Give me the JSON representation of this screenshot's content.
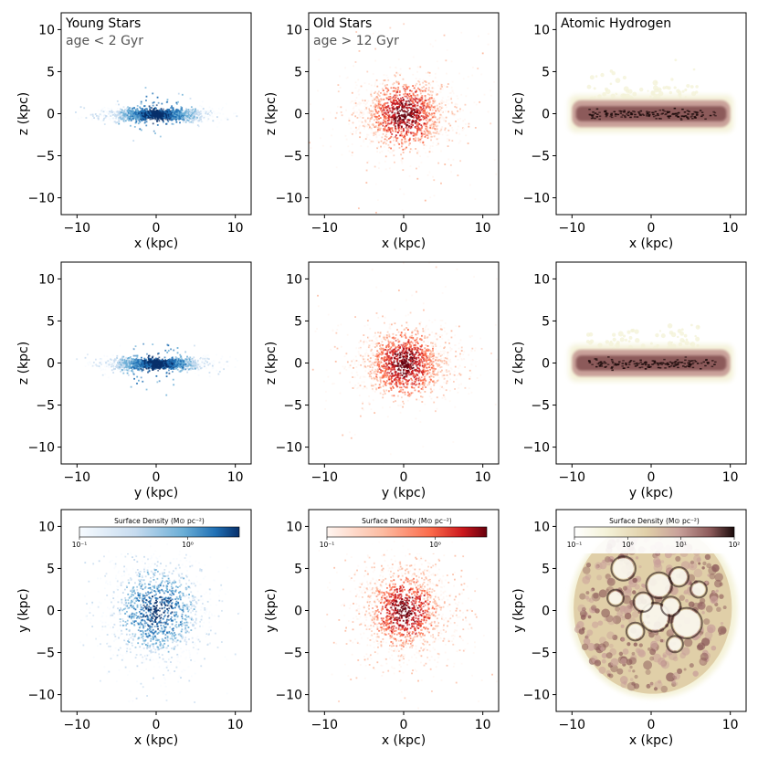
{
  "figure": {
    "panels": [
      {
        "row": 0,
        "col": 0,
        "component": "young",
        "projection": "xz",
        "title": "Young Stars",
        "subtitle": "age < 2 Gyr"
      },
      {
        "row": 0,
        "col": 1,
        "component": "old",
        "projection": "xz",
        "title": "Old Stars",
        "subtitle": "age > 12 Gyr"
      },
      {
        "row": 0,
        "col": 2,
        "component": "hi",
        "projection": "xz",
        "title": "Atomic Hydrogen",
        "subtitle": ""
      },
      {
        "row": 1,
        "col": 0,
        "component": "young",
        "projection": "yz",
        "title": "",
        "subtitle": ""
      },
      {
        "row": 1,
        "col": 1,
        "component": "old",
        "projection": "yz",
        "title": "",
        "subtitle": ""
      },
      {
        "row": 1,
        "col": 2,
        "component": "hi",
        "projection": "yz",
        "title": "",
        "subtitle": ""
      },
      {
        "row": 2,
        "col": 0,
        "component": "young",
        "projection": "xy",
        "title": "",
        "subtitle": ""
      },
      {
        "row": 2,
        "col": 1,
        "component": "old",
        "projection": "xy",
        "title": "",
        "subtitle": ""
      },
      {
        "row": 2,
        "col": 2,
        "component": "hi",
        "projection": "xy",
        "title": "",
        "subtitle": ""
      }
    ],
    "colorbars": [
      {
        "col": 0,
        "label": "Surface Density (M⊙ pc⁻²)",
        "ticks": [
          "10⁻¹",
          "10⁰"
        ],
        "cmap": "Blues"
      },
      {
        "col": 1,
        "label": "Surface Density (M⊙ pc⁻²)",
        "ticks": [
          "10⁻¹",
          "10⁰"
        ],
        "cmap": "Reds"
      },
      {
        "col": 2,
        "label": "Surface Density (M⊙ pc⁻²)",
        "ticks": [
          "10⁻¹",
          "10⁰",
          "10¹",
          "10²"
        ],
        "cmap": "pink_r"
      }
    ],
    "colors": {
      "young": [
        "#f7fbff",
        "#c6dbef",
        "#6baed6",
        "#2171b5",
        "#08306b"
      ],
      "old": [
        "#fff5f0",
        "#fcbba1",
        "#fb6a4a",
        "#cb181d",
        "#67000d"
      ],
      "hi": [
        "#f4f2d8",
        "#e0cfa8",
        "#c9a19a",
        "#8c5a5a",
        "#1a0a0a"
      ],
      "subtitle": "#555555"
    }
  },
  "chart_data": [
    {
      "type": "heatmap",
      "title": "Young Stars",
      "annotation": "age < 2 Gyr",
      "xlabel": "x (kpc)",
      "ylabel": "z (kpc)",
      "xlim": [
        -12,
        12
      ],
      "ylim": [
        -12,
        12
      ],
      "xticks": [
        -10,
        0,
        10
      ],
      "yticks": [
        -10,
        -5,
        0,
        5,
        10
      ],
      "cmap": "Blues"
    },
    {
      "type": "heatmap",
      "title": "Old Stars",
      "annotation": "age > 12 Gyr",
      "xlabel": "x (kpc)",
      "ylabel": "z (kpc)",
      "xlim": [
        -12,
        12
      ],
      "ylim": [
        -12,
        12
      ],
      "xticks": [
        -10,
        0,
        10
      ],
      "yticks": [
        -10,
        -5,
        0,
        5,
        10
      ],
      "cmap": "Reds"
    },
    {
      "type": "heatmap",
      "title": "Atomic Hydrogen",
      "xlabel": "x (kpc)",
      "ylabel": "z (kpc)",
      "xlim": [
        -12,
        12
      ],
      "ylim": [
        -12,
        12
      ],
      "xticks": [
        -10,
        0,
        10
      ],
      "yticks": [
        -10,
        -5,
        0,
        5,
        10
      ],
      "cmap": "pink_r"
    },
    {
      "type": "heatmap",
      "xlabel": "y (kpc)",
      "ylabel": "z (kpc)",
      "xlim": [
        -12,
        12
      ],
      "ylim": [
        -12,
        12
      ],
      "xticks": [
        -10,
        0,
        10
      ],
      "yticks": [
        -10,
        -5,
        0,
        5,
        10
      ],
      "cmap": "Blues"
    },
    {
      "type": "heatmap",
      "xlabel": "y (kpc)",
      "ylabel": "z (kpc)",
      "xlim": [
        -12,
        12
      ],
      "ylim": [
        -12,
        12
      ],
      "xticks": [
        -10,
        0,
        10
      ],
      "yticks": [
        -10,
        -5,
        0,
        5,
        10
      ],
      "cmap": "Reds"
    },
    {
      "type": "heatmap",
      "xlabel": "y (kpc)",
      "ylabel": "z (kpc)",
      "xlim": [
        -12,
        12
      ],
      "ylim": [
        -12,
        12
      ],
      "xticks": [
        -10,
        0,
        10
      ],
      "yticks": [
        -10,
        -5,
        0,
        5,
        10
      ],
      "cmap": "pink_r"
    },
    {
      "type": "heatmap",
      "xlabel": "x (kpc)",
      "ylabel": "y (kpc)",
      "xlim": [
        -12,
        12
      ],
      "ylim": [
        -12,
        12
      ],
      "xticks": [
        -10,
        0,
        10
      ],
      "yticks": [
        -10,
        -5,
        0,
        5,
        10
      ],
      "cmap": "Blues",
      "colorbar": {
        "label": "Surface Density (M⊙ pc⁻²)",
        "range": [
          0.1,
          3
        ],
        "ticks": [
          "10⁻¹",
          "10⁰"
        ]
      }
    },
    {
      "type": "heatmap",
      "xlabel": "x (kpc)",
      "ylabel": "y (kpc)",
      "xlim": [
        -12,
        12
      ],
      "ylim": [
        -12,
        12
      ],
      "xticks": [
        -10,
        0,
        10
      ],
      "yticks": [
        -10,
        -5,
        0,
        5,
        10
      ],
      "cmap": "Reds",
      "colorbar": {
        "label": "Surface Density (M⊙ pc⁻²)",
        "range": [
          0.1,
          3
        ],
        "ticks": [
          "10⁻¹",
          "10⁰"
        ]
      }
    },
    {
      "type": "heatmap",
      "xlabel": "x (kpc)",
      "ylabel": "y (kpc)",
      "xlim": [
        -12,
        12
      ],
      "ylim": [
        -12,
        12
      ],
      "xticks": [
        -10,
        0,
        10
      ],
      "yticks": [
        -10,
        -5,
        0,
        5,
        10
      ],
      "cmap": "pink_r",
      "colorbar": {
        "label": "Surface Density (M⊙ pc⁻²)",
        "range": [
          0.1,
          100
        ],
        "ticks": [
          "10⁻¹",
          "10⁰",
          "10¹",
          "10²"
        ]
      }
    }
  ]
}
